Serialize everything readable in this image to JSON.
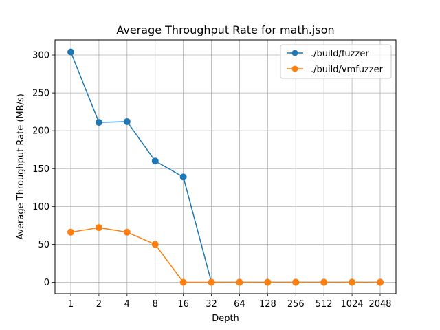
{
  "chart_data": {
    "type": "line",
    "title": "Average Throughput Rate for math.json",
    "xlabel": "Depth",
    "ylabel": "Average Throughput Rate (MB/s)",
    "categories": [
      "1",
      "2",
      "4",
      "8",
      "16",
      "32",
      "64",
      "128",
      "256",
      "512",
      "1024",
      "2048"
    ],
    "ylim": [
      -15,
      320
    ],
    "yticks": [
      0,
      50,
      100,
      150,
      200,
      250,
      300
    ],
    "grid": true,
    "legend_position": "top-right",
    "series": [
      {
        "name": "./build/fuzzer",
        "color": "#1f77b4",
        "marker": "circle",
        "values": [
          304,
          211,
          212,
          160,
          139,
          0,
          0,
          0,
          0,
          0,
          0,
          0
        ]
      },
      {
        "name": "./build/vmfuzzer",
        "color": "#ff7f0e",
        "marker": "circle",
        "values": [
          66,
          72,
          66,
          50,
          0,
          0,
          0,
          0,
          0,
          0,
          0,
          0
        ]
      }
    ]
  }
}
